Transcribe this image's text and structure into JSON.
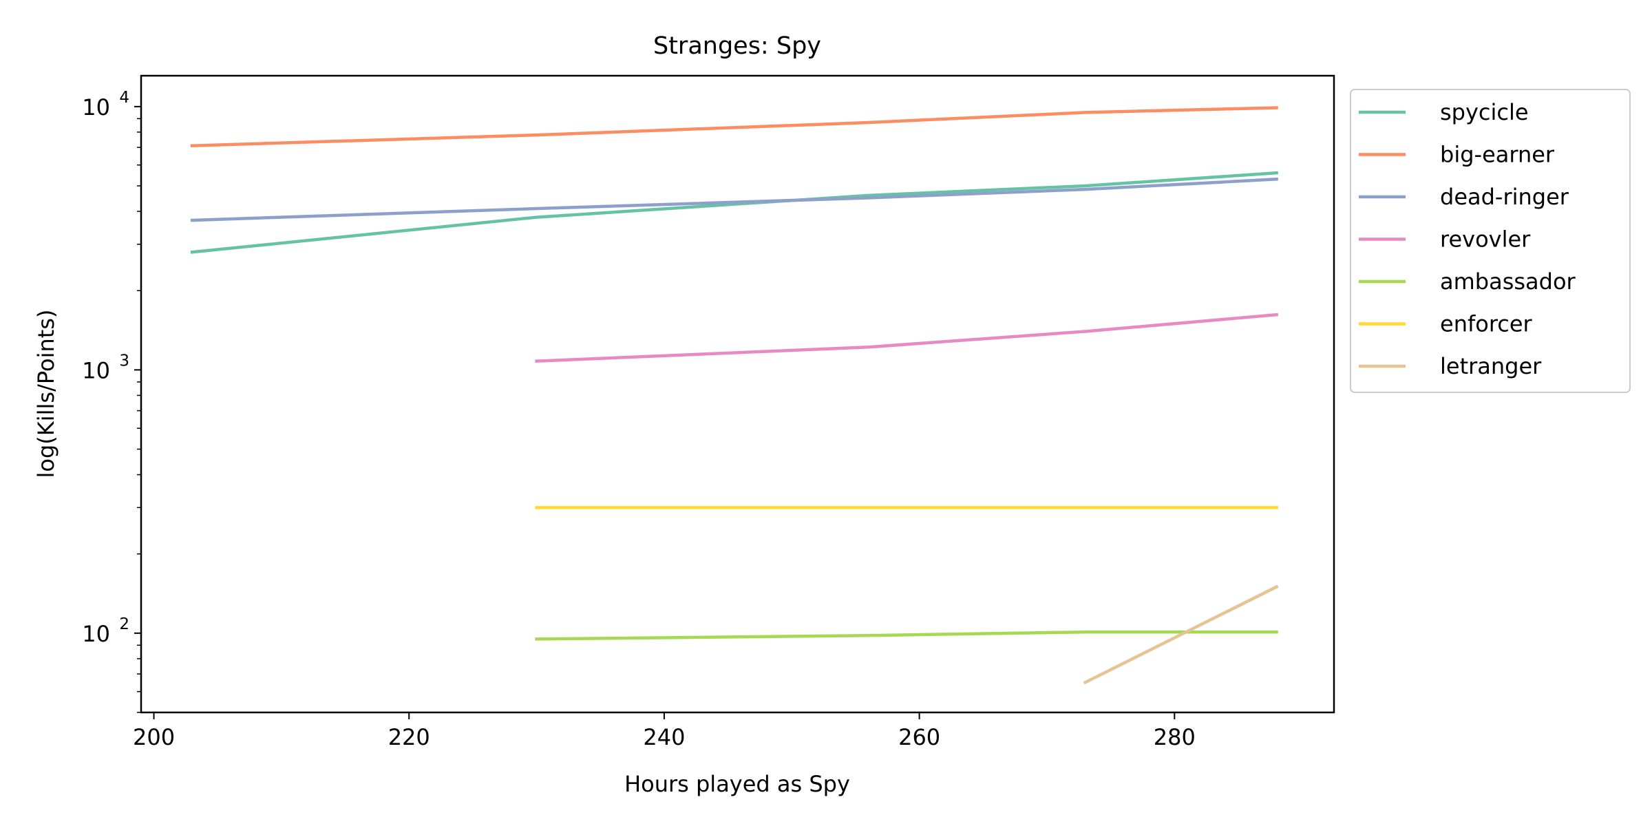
{
  "chart_data": {
    "type": "line",
    "title": "Stranges: Spy",
    "xlabel": "Hours played as Spy",
    "ylabel": "log(Kills/Points)",
    "xlim": [
      199,
      292.5
    ],
    "ylim": [
      50,
      13100
    ],
    "yscale": "log",
    "grid": false,
    "legend_position": "outside-right-top",
    "x_ticks": [
      200,
      220,
      240,
      260,
      280
    ],
    "x_tick_labels": [
      "200",
      "220",
      "240",
      "260",
      "280"
    ],
    "y_ticks": [
      100,
      1000,
      10000
    ],
    "y_tick_labels": [
      [
        "10",
        "2"
      ],
      [
        "10",
        "3"
      ],
      [
        "10",
        "4"
      ]
    ],
    "series": [
      {
        "name": "spycicle",
        "color": "#66c2a5",
        "x": [
          203,
          230,
          256,
          273,
          288
        ],
        "y": [
          2800,
          3800,
          4600,
          5000,
          5600
        ]
      },
      {
        "name": "big-earner",
        "color": "#fc8d62",
        "x": [
          203,
          230,
          256,
          273,
          288
        ],
        "y": [
          7100,
          7800,
          8700,
          9500,
          9900
        ]
      },
      {
        "name": "dead-ringer",
        "color": "#8da0cb",
        "x": [
          203,
          230,
          256,
          273,
          288
        ],
        "y": [
          3700,
          4100,
          4500,
          4850,
          5300
        ]
      },
      {
        "name": "revovler",
        "color": "#e78ac3",
        "x": [
          230,
          256,
          273,
          288
        ],
        "y": [
          1080,
          1220,
          1400,
          1620
        ]
      },
      {
        "name": "ambassador",
        "color": "#a6d854",
        "x": [
          230,
          256,
          273,
          288
        ],
        "y": [
          95,
          98,
          101,
          101
        ]
      },
      {
        "name": "enforcer",
        "color": "#ffd92f",
        "x": [
          230,
          256,
          273,
          288
        ],
        "y": [
          300,
          300,
          300,
          300
        ]
      },
      {
        "name": "letranger",
        "color": "#e5c494",
        "x": [
          273,
          288
        ],
        "y": [
          65,
          150
        ]
      }
    ]
  }
}
